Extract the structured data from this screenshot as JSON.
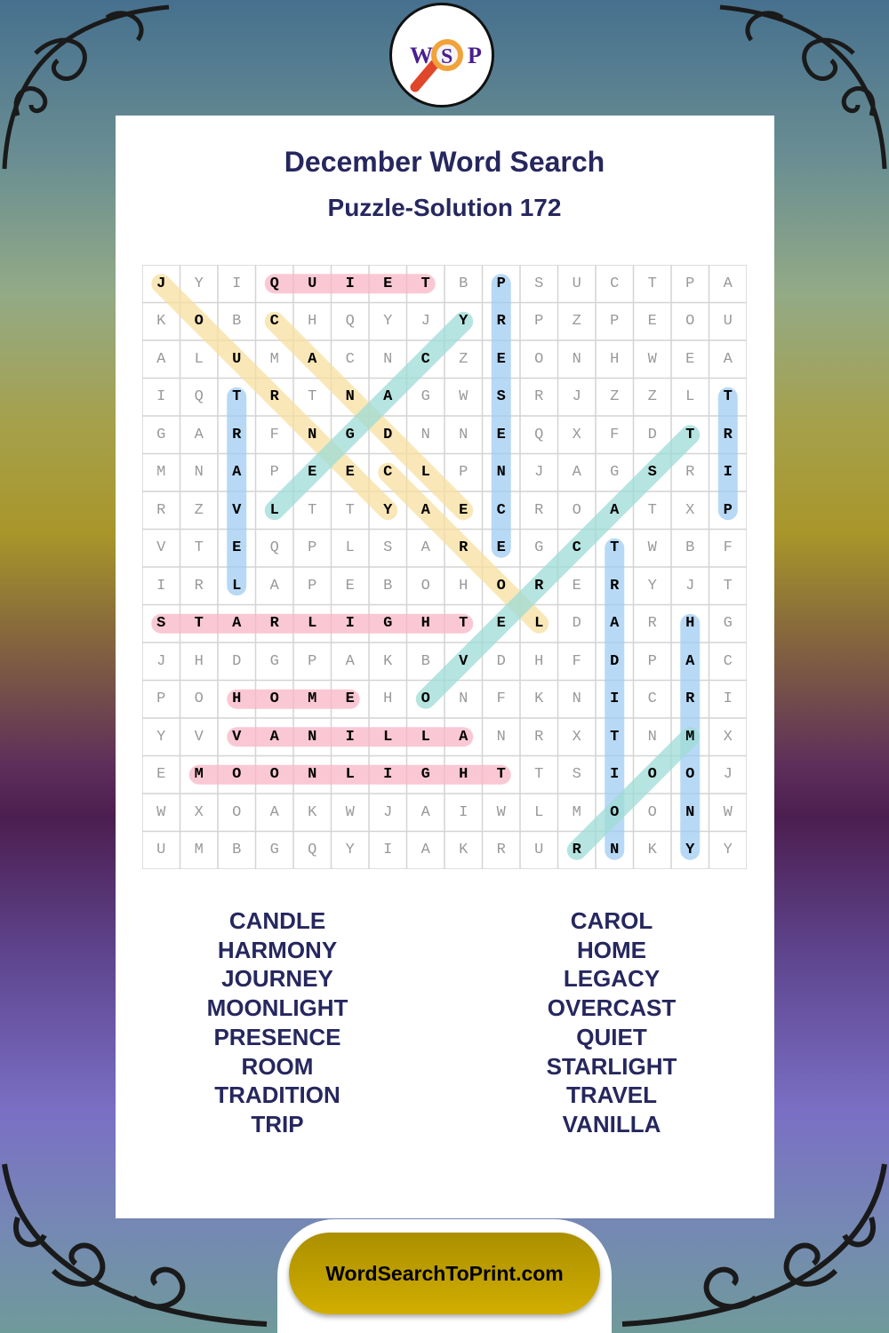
{
  "logo": {
    "letters": [
      "W",
      "S",
      "P"
    ],
    "icon": "magnifier-icon"
  },
  "title": "December Word Search",
  "subtitle": "Puzzle-Solution 172",
  "grid": [
    "JYIQUIETBPSUCTPA",
    "KOBCHQYJYRPZPEOU",
    "ALUMACNCZEONHWEA",
    "IQTRTNAGWSRJZZLT",
    "GARFNGDNNEQXFDTR",
    "MNAPEECLPNJAGSRI",
    "RZVLTTYAECROATXP",
    "VTEQPLSAREGCTWBF",
    "IRLAPEBOHORERYJT",
    "STARLIGHTELDARHG",
    "JHDGPAKBVDHFDPAC",
    "POHOMEHONFKNICRI",
    "YVVANILLANRXTNMX",
    "EMOONLIGHTTSIOOJ",
    "WXOAKWJAIWLMOONW",
    "UMBGQYIAKRURNKYY"
  ],
  "colors": {
    "pink": "#f9b6c6",
    "yellow": "#f8dfa0",
    "teal": "#9edcd6",
    "blue": "#9fcdf2",
    "title": "#26275e",
    "button": "#c4a300"
  },
  "solutions": [
    {
      "word": "QUIET",
      "from": [
        0,
        3
      ],
      "to": [
        0,
        7
      ],
      "color": "pink"
    },
    {
      "word": "JOURNEY",
      "from": [
        0,
        0
      ],
      "to": [
        6,
        6
      ],
      "color": "yellow"
    },
    {
      "word": "CANDLE",
      "from": [
        1,
        3
      ],
      "to": [
        6,
        8
      ],
      "color": "yellow"
    },
    {
      "word": "CAROL",
      "from": [
        5,
        6
      ],
      "to": [
        9,
        10
      ],
      "color": "yellow"
    },
    {
      "word": "LEGACY",
      "from": [
        6,
        3
      ],
      "to": [
        1,
        8
      ],
      "color": "teal"
    },
    {
      "word": "PRESENCE",
      "from": [
        0,
        9
      ],
      "to": [
        7,
        9
      ],
      "color": "blue"
    },
    {
      "word": "TRAVEL",
      "from": [
        3,
        2
      ],
      "to": [
        8,
        2
      ],
      "color": "blue"
    },
    {
      "word": "TRIP",
      "from": [
        3,
        15
      ],
      "to": [
        6,
        15
      ],
      "color": "blue"
    },
    {
      "word": "OVERCAST",
      "from": [
        11,
        7
      ],
      "to": [
        4,
        14
      ],
      "color": "teal"
    },
    {
      "word": "TRADITION",
      "from": [
        7,
        12
      ],
      "to": [
        15,
        12
      ],
      "color": "blue"
    },
    {
      "word": "HARMONY",
      "from": [
        9,
        14
      ],
      "to": [
        15,
        14
      ],
      "color": "blue"
    },
    {
      "word": "ROOM",
      "from": [
        15,
        11
      ],
      "to": [
        12,
        14
      ],
      "color": "teal"
    },
    {
      "word": "STARLIGHT",
      "from": [
        9,
        0
      ],
      "to": [
        9,
        8
      ],
      "color": "pink"
    },
    {
      "word": "HOME",
      "from": [
        11,
        2
      ],
      "to": [
        11,
        5
      ],
      "color": "pink"
    },
    {
      "word": "VANILLA",
      "from": [
        12,
        2
      ],
      "to": [
        12,
        8
      ],
      "color": "pink"
    },
    {
      "word": "MOONLIGHT",
      "from": [
        13,
        1
      ],
      "to": [
        13,
        9
      ],
      "color": "pink"
    }
  ],
  "words_left": [
    "CANDLE",
    "HARMONY",
    "JOURNEY",
    "MOONLIGHT",
    "PRESENCE",
    "ROOM",
    "TRADITION",
    "TRIP"
  ],
  "words_right": [
    "CAROL",
    "HOME",
    "LEGACY",
    "OVERCAST",
    "QUIET",
    "STARLIGHT",
    "TRAVEL",
    "VANILLA"
  ],
  "footer": "WordSearchToPrint.com"
}
